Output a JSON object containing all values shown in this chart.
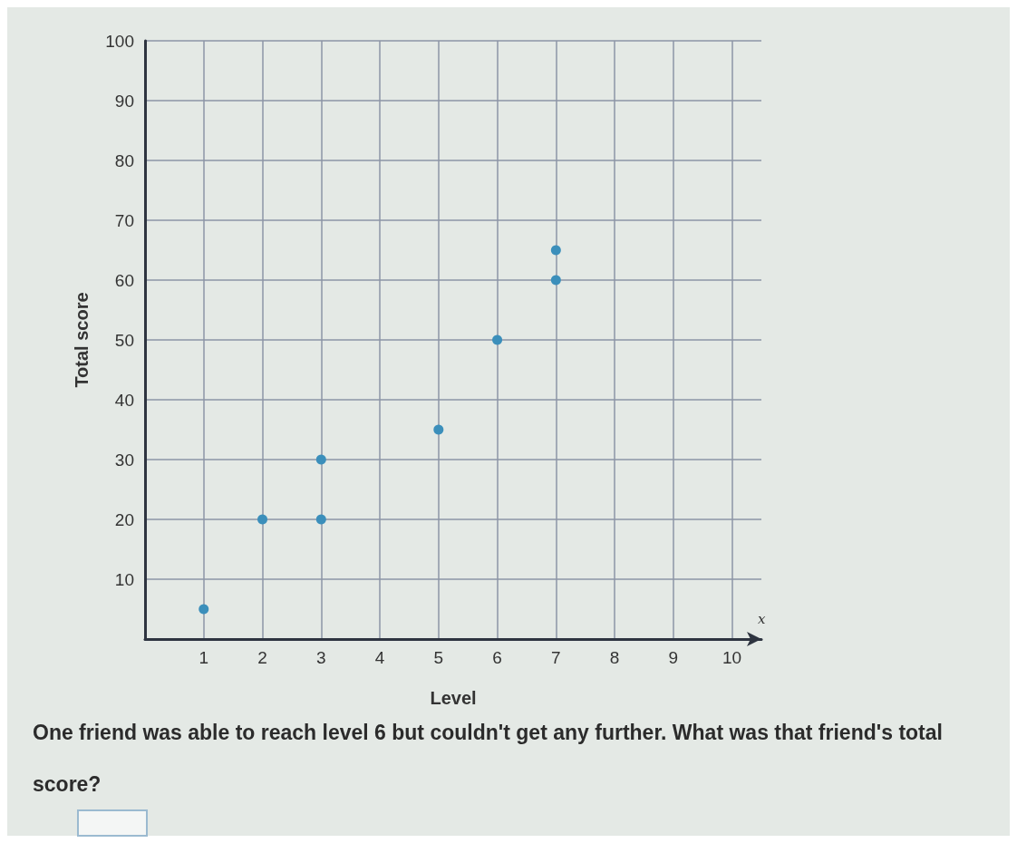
{
  "chart_data": {
    "type": "scatter",
    "xlabel": "Level",
    "ylabel": "Total score",
    "x": [
      1,
      2,
      3,
      3,
      5,
      6,
      7,
      7
    ],
    "values": [
      5,
      20,
      20,
      30,
      35,
      50,
      60,
      65
    ],
    "color": "#3b8fbb",
    "xlim": [
      0,
      10.5
    ],
    "xticks": [
      1,
      2,
      3,
      4,
      5,
      6,
      7,
      8,
      9,
      10
    ],
    "ylim": [
      0,
      100
    ],
    "yticks": [
      10,
      20,
      30,
      40,
      50,
      60,
      70,
      80,
      90,
      100
    ],
    "grid": true,
    "marker": "circle",
    "annotations": [
      "x",
      "One friend was able to reach level 6 but couldn't get any further. What was that friend's total score?"
    ]
  }
}
